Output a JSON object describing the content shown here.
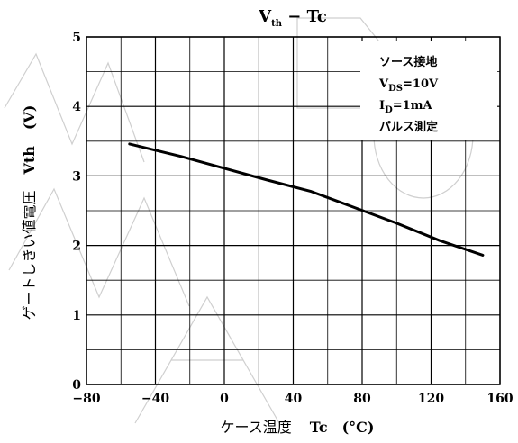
{
  "chart_data": {
    "type": "line",
    "title": {
      "main": "V",
      "sub": "th",
      "rest": " − Tc"
    },
    "xlabel": {
      "jp": "ケース温度",
      "sym": "Tc",
      "unit": "(°C)"
    },
    "ylabel": {
      "jp": "ゲートしきい値電圧",
      "sym": "Vth",
      "unit": "(V)"
    },
    "xlim": [
      -80,
      160
    ],
    "ylim": [
      0,
      5
    ],
    "xticks": [
      -80,
      -40,
      0,
      40,
      80,
      120,
      160
    ],
    "xtick_labels": [
      "−80",
      "−40",
      "0",
      "40",
      "80",
      "120",
      "160"
    ],
    "yticks": [
      0,
      1,
      2,
      3,
      4,
      5
    ],
    "ytick_labels": [
      "0",
      "1",
      "2",
      "3",
      "4",
      "5"
    ],
    "grid": true,
    "x_minor_step": 20,
    "y_minor_step": 0.5,
    "conditions": [
      {
        "main": "ソース接地",
        "sub": "",
        "rest": ""
      },
      {
        "main": "V",
        "sub": "DS",
        "rest": "=10V"
      },
      {
        "main": "I",
        "sub": "D",
        "rest": "=1mA"
      },
      {
        "main": "パルス測定",
        "sub": "",
        "rest": ""
      }
    ],
    "series": [
      {
        "x": [
          -55,
          -25,
          0,
          25,
          50,
          75,
          100,
          125,
          150
        ],
        "y": [
          3.46,
          3.28,
          3.11,
          2.94,
          2.78,
          2.55,
          2.32,
          2.07,
          1.86
        ]
      }
    ],
    "line_color": "#000000"
  }
}
